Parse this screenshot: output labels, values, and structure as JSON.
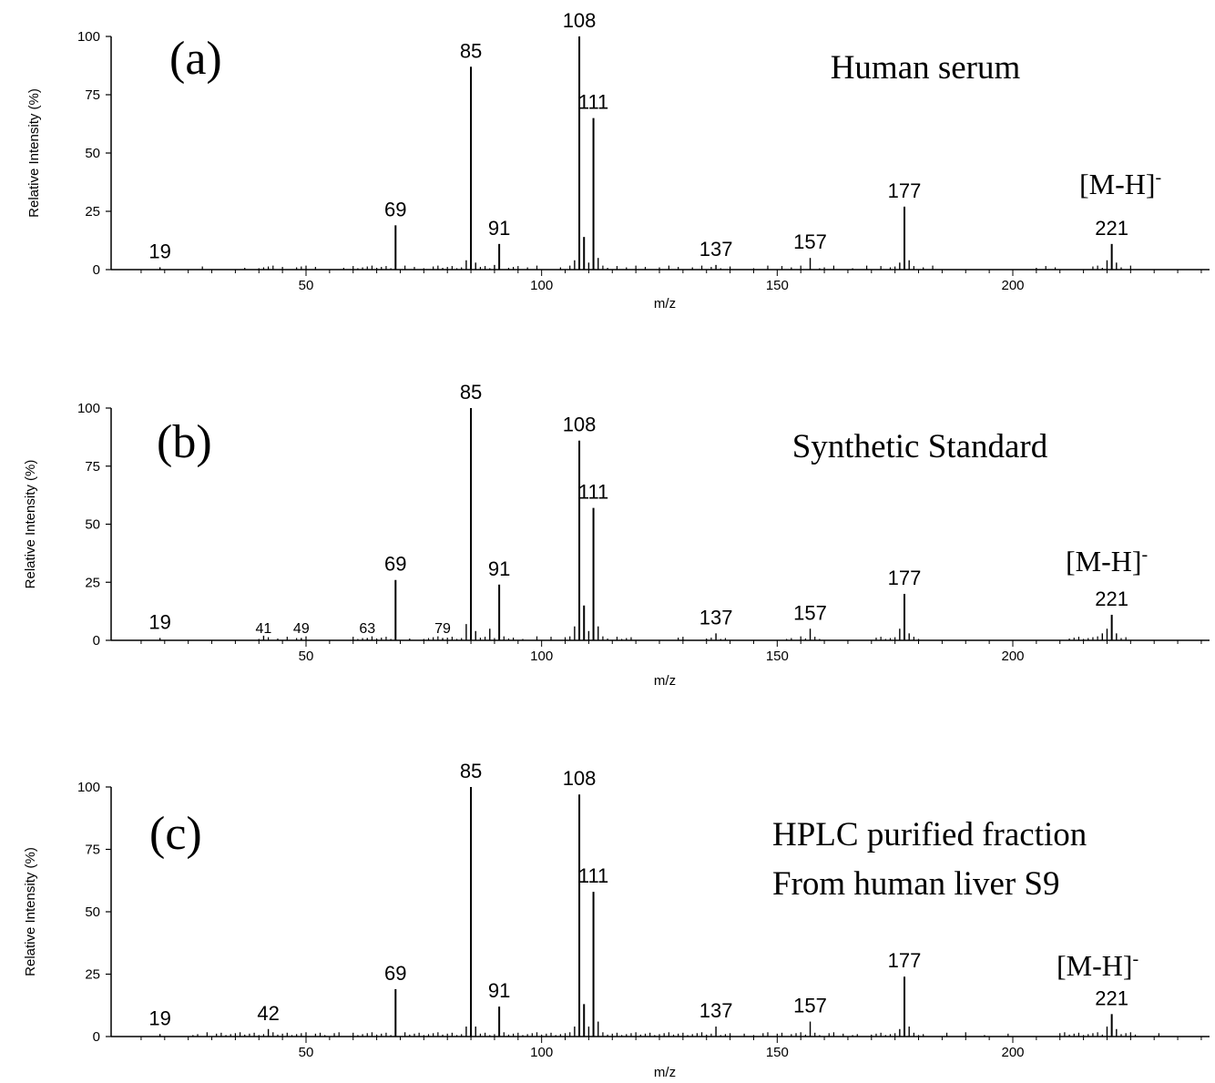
{
  "chart_data": [
    {
      "type": "bar",
      "panel_label": "(a)",
      "title_lines": [
        "Human serum"
      ],
      "ion_label": "[M-H]",
      "ion_sup": "-",
      "xlabel": "m/z",
      "ylabel": "Relative Intensity (%)",
      "xlim": [
        10,
        240
      ],
      "ylim": [
        0,
        100
      ],
      "xticks": [
        50,
        100,
        150,
        200
      ],
      "yticks": [
        0,
        25,
        50,
        75,
        100
      ],
      "peaks": [
        {
          "mz": 19,
          "intensity": 1,
          "label": "19"
        },
        {
          "mz": 69,
          "intensity": 19,
          "label": "69"
        },
        {
          "mz": 84,
          "intensity": 4
        },
        {
          "mz": 85,
          "intensity": 87,
          "label": "85"
        },
        {
          "mz": 86,
          "intensity": 3
        },
        {
          "mz": 90,
          "intensity": 2
        },
        {
          "mz": 91,
          "intensity": 11,
          "label": "91"
        },
        {
          "mz": 107,
          "intensity": 4
        },
        {
          "mz": 108,
          "intensity": 100,
          "label": "108"
        },
        {
          "mz": 109,
          "intensity": 14
        },
        {
          "mz": 110,
          "intensity": 3
        },
        {
          "mz": 111,
          "intensity": 65,
          "label": "111"
        },
        {
          "mz": 112,
          "intensity": 5
        },
        {
          "mz": 137,
          "intensity": 2,
          "label": "137"
        },
        {
          "mz": 157,
          "intensity": 5,
          "label": "157"
        },
        {
          "mz": 176,
          "intensity": 3
        },
        {
          "mz": 177,
          "intensity": 27,
          "label": "177"
        },
        {
          "mz": 178,
          "intensity": 4
        },
        {
          "mz": 220,
          "intensity": 4
        },
        {
          "mz": 221,
          "intensity": 11,
          "label": "221"
        },
        {
          "mz": 222,
          "intensity": 3
        }
      ],
      "noise": [
        28,
        37,
        40,
        41,
        42,
        43,
        45,
        48,
        49,
        50,
        52,
        58,
        60,
        61,
        62,
        63,
        64,
        65,
        66,
        67,
        68,
        71,
        73,
        75,
        77,
        78,
        79,
        80,
        81,
        82,
        83,
        87,
        88,
        89,
        93,
        94,
        95,
        97,
        99,
        104,
        106,
        113,
        114,
        116,
        118,
        120,
        122,
        125,
        127,
        129,
        132,
        134,
        136,
        138,
        140,
        145,
        148,
        151,
        153,
        155,
        159,
        160,
        162,
        166,
        169,
        172,
        174,
        175,
        179,
        181,
        183,
        205,
        207,
        209,
        217,
        218,
        219,
        223,
        225
      ]
    },
    {
      "type": "bar",
      "panel_label": "(b)",
      "title_lines": [
        "Synthetic Standard"
      ],
      "ion_label": "[M-H]",
      "ion_sup": "-",
      "xlabel": "m/z",
      "ylabel": "Relative Intensity (%)",
      "xlim": [
        10,
        240
      ],
      "ylim": [
        0,
        100
      ],
      "xticks": [
        50,
        100,
        150,
        200
      ],
      "yticks": [
        0,
        25,
        50,
        75,
        100
      ],
      "peaks": [
        {
          "mz": 19,
          "intensity": 1,
          "label": "19"
        },
        {
          "mz": 41,
          "intensity": 2,
          "label": "41",
          "small": true
        },
        {
          "mz": 49,
          "intensity": 1,
          "label": "49",
          "small": true
        },
        {
          "mz": 63,
          "intensity": 1,
          "label": "63",
          "small": true
        },
        {
          "mz": 69,
          "intensity": 26,
          "label": "69"
        },
        {
          "mz": 79,
          "intensity": 1,
          "label": "79",
          "small": true
        },
        {
          "mz": 84,
          "intensity": 7
        },
        {
          "mz": 85,
          "intensity": 100,
          "label": "85"
        },
        {
          "mz": 86,
          "intensity": 4
        },
        {
          "mz": 89,
          "intensity": 5
        },
        {
          "mz": 91,
          "intensity": 24,
          "label": "91"
        },
        {
          "mz": 107,
          "intensity": 6
        },
        {
          "mz": 108,
          "intensity": 86,
          "label": "108"
        },
        {
          "mz": 109,
          "intensity": 15
        },
        {
          "mz": 110,
          "intensity": 4
        },
        {
          "mz": 111,
          "intensity": 57,
          "label": "111"
        },
        {
          "mz": 112,
          "intensity": 6
        },
        {
          "mz": 137,
          "intensity": 3,
          "label": "137"
        },
        {
          "mz": 157,
          "intensity": 5,
          "label": "157"
        },
        {
          "mz": 176,
          "intensity": 5
        },
        {
          "mz": 177,
          "intensity": 20,
          "label": "177"
        },
        {
          "mz": 178,
          "intensity": 3
        },
        {
          "mz": 219,
          "intensity": 3
        },
        {
          "mz": 220,
          "intensity": 5
        },
        {
          "mz": 221,
          "intensity": 11,
          "label": "221"
        },
        {
          "mz": 222,
          "intensity": 3
        }
      ],
      "noise": [
        40,
        42,
        44,
        46,
        48,
        50,
        60,
        61,
        62,
        64,
        65,
        66,
        67,
        68,
        72,
        75,
        76,
        77,
        78,
        80,
        81,
        82,
        83,
        87,
        88,
        90,
        92,
        93,
        94,
        96,
        99,
        102,
        105,
        106,
        113,
        114,
        116,
        117,
        118,
        119,
        129,
        130,
        135,
        136,
        138,
        139,
        152,
        153,
        155,
        156,
        158,
        159,
        171,
        172,
        173,
        174,
        175,
        179,
        180,
        212,
        213,
        214,
        215,
        216,
        217,
        218,
        223,
        224
      ]
    },
    {
      "type": "bar",
      "panel_label": "(c)",
      "title_lines": [
        "HPLC purified fraction",
        "From human liver S9"
      ],
      "ion_label": "[M-H]",
      "ion_sup": "-",
      "xlabel": "m/z",
      "ylabel": "Relative Intensity (%)",
      "xlim": [
        10,
        240
      ],
      "ylim": [
        0,
        100
      ],
      "xticks": [
        50,
        100,
        150,
        200
      ],
      "yticks": [
        0,
        25,
        50,
        75,
        100
      ],
      "peaks": [
        {
          "mz": 19,
          "intensity": 1,
          "label": "19"
        },
        {
          "mz": 42,
          "intensity": 3,
          "label": "42"
        },
        {
          "mz": 69,
          "intensity": 19,
          "label": "69"
        },
        {
          "mz": 84,
          "intensity": 4
        },
        {
          "mz": 85,
          "intensity": 100,
          "label": "85"
        },
        {
          "mz": 86,
          "intensity": 4
        },
        {
          "mz": 91,
          "intensity": 12,
          "label": "91"
        },
        {
          "mz": 107,
          "intensity": 4
        },
        {
          "mz": 108,
          "intensity": 97,
          "label": "108"
        },
        {
          "mz": 109,
          "intensity": 13
        },
        {
          "mz": 110,
          "intensity": 4
        },
        {
          "mz": 111,
          "intensity": 58,
          "label": "111"
        },
        {
          "mz": 112,
          "intensity": 6
        },
        {
          "mz": 137,
          "intensity": 4,
          "label": "137"
        },
        {
          "mz": 157,
          "intensity": 6,
          "label": "157"
        },
        {
          "mz": 176,
          "intensity": 3
        },
        {
          "mz": 177,
          "intensity": 24,
          "label": "177"
        },
        {
          "mz": 178,
          "intensity": 4
        },
        {
          "mz": 220,
          "intensity": 4
        },
        {
          "mz": 221,
          "intensity": 9,
          "label": "221"
        },
        {
          "mz": 222,
          "intensity": 3
        }
      ],
      "noise": [
        26,
        27,
        29,
        31,
        32,
        33,
        34,
        35,
        36,
        37,
        38,
        39,
        40,
        41,
        43,
        44,
        45,
        46,
        47,
        48,
        49,
        50,
        52,
        53,
        54,
        56,
        57,
        60,
        61,
        62,
        63,
        64,
        65,
        66,
        67,
        68,
        71,
        72,
        73,
        74,
        75,
        76,
        77,
        78,
        79,
        80,
        81,
        82,
        83,
        87,
        88,
        89,
        90,
        92,
        93,
        94,
        95,
        96,
        97,
        98,
        99,
        100,
        101,
        102,
        103,
        104,
        105,
        106,
        113,
        114,
        115,
        116,
        117,
        118,
        119,
        120,
        121,
        122,
        123,
        124,
        125,
        126,
        127,
        128,
        129,
        130,
        131,
        132,
        133,
        134,
        135,
        136,
        138,
        139,
        140,
        143,
        145,
        147,
        148,
        150,
        151,
        153,
        154,
        155,
        156,
        158,
        159,
        161,
        162,
        164,
        166,
        167,
        170,
        171,
        172,
        173,
        174,
        175,
        179,
        180,
        181,
        186,
        190,
        194,
        199,
        210,
        211,
        212,
        213,
        214,
        215,
        216,
        217,
        218,
        219,
        223,
        224,
        225,
        226,
        231
      ]
    }
  ]
}
